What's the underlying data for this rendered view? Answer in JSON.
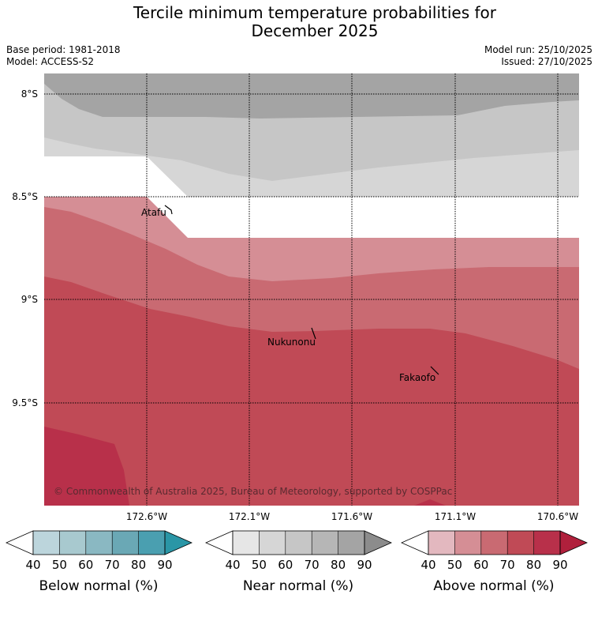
{
  "header": {
    "title_line1": "Tercile minimum temperature probabilities for",
    "title_line2": "December 2025",
    "base_period": "Base period: 1981-2018",
    "model": "Model: ACCESS-S2",
    "model_run": "Model run: 25/10/2025",
    "issued": "Issued: 27/10/2025"
  },
  "map": {
    "lat_labels": [
      "8°S",
      "8.5°S",
      "9°S",
      "9.5°S"
    ],
    "lon_labels": [
      "172.6°W",
      "172.1°W",
      "171.6°W",
      "171.1°W",
      "170.6°W"
    ],
    "places": [
      "Atafu",
      "Nukunonu",
      "Fakaofo"
    ],
    "copyright": "© Commonwealth of Australia 2025, Bureau of Meteorology, supported by COSPPac"
  },
  "colorbars": [
    {
      "label": "Below normal (%)",
      "ticks": [
        "40",
        "50",
        "60",
        "70",
        "80",
        "90"
      ],
      "colors": [
        "#ffffff",
        "#bcd5dc",
        "#a8c9cf",
        "#8ab8c2",
        "#6aa8b5",
        "#4a9fb0",
        "#2a96a6"
      ]
    },
    {
      "label": "Near normal (%)",
      "ticks": [
        "40",
        "50",
        "60",
        "70",
        "80",
        "90"
      ],
      "colors": [
        "#ffffff",
        "#e6e6e6",
        "#d6d6d6",
        "#c6c6c6",
        "#b6b6b6",
        "#a4a4a4",
        "#8c8c8c"
      ]
    },
    {
      "label": "Above normal (%)",
      "ticks": [
        "40",
        "50",
        "60",
        "70",
        "80",
        "90"
      ],
      "colors": [
        "#ffffff",
        "#e3b8bf",
        "#d58e95",
        "#c96a72",
        "#c04a56",
        "#b8304a",
        "#b0203c"
      ]
    }
  ]
}
